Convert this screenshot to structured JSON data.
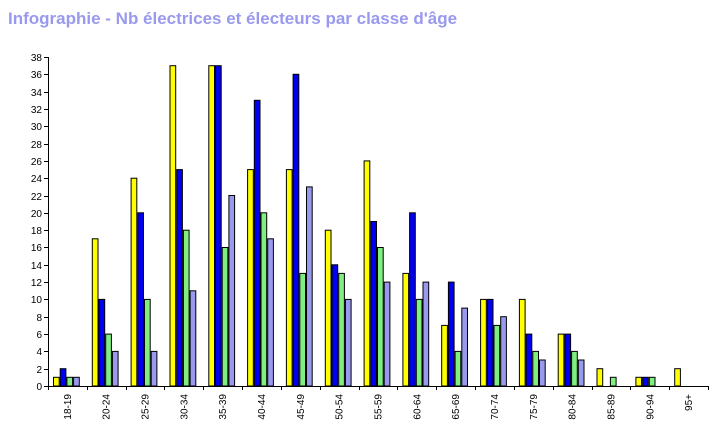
{
  "title": "Infographie - Nb électrices et électeurs par classe d'âge",
  "colors": {
    "title": "#9999ee",
    "axis": "#000000",
    "bar_outline": "#000000"
  },
  "chart_data": {
    "type": "bar",
    "title": "Infographie - Nb électrices et électeurs par classe d'âge",
    "xlabel": "",
    "ylabel": "",
    "ylim": [
      0,
      38
    ],
    "yticks": [
      0,
      2,
      4,
      6,
      8,
      10,
      12,
      14,
      16,
      18,
      20,
      22,
      24,
      26,
      28,
      30,
      32,
      34,
      36,
      38
    ],
    "grid": false,
    "legend": "none",
    "categories": [
      "18-19",
      "20-24",
      "25-29",
      "30-34",
      "35-39",
      "40-44",
      "45-49",
      "50-54",
      "55-59",
      "60-64",
      "65-69",
      "70-74",
      "75-79",
      "80-84",
      "85-89",
      "90-94",
      "95+"
    ],
    "series": [
      {
        "color": "#ffff00",
        "values": [
          1,
          17,
          24,
          37,
          37,
          25,
          25,
          18,
          26,
          13,
          7,
          10,
          10,
          6,
          2,
          1,
          2
        ]
      },
      {
        "color": "#0000ee",
        "values": [
          2,
          10,
          20,
          25,
          37,
          33,
          36,
          14,
          19,
          20,
          12,
          10,
          6,
          6,
          0,
          1,
          0
        ]
      },
      {
        "color": "#80ee80",
        "values": [
          1,
          6,
          10,
          18,
          16,
          20,
          13,
          13,
          16,
          10,
          4,
          7,
          4,
          4,
          1,
          1,
          0
        ]
      },
      {
        "color": "#9999ee",
        "values": [
          1,
          4,
          4,
          11,
          22,
          17,
          23,
          10,
          12,
          12,
          9,
          8,
          3,
          3,
          0,
          0,
          0
        ]
      }
    ]
  }
}
